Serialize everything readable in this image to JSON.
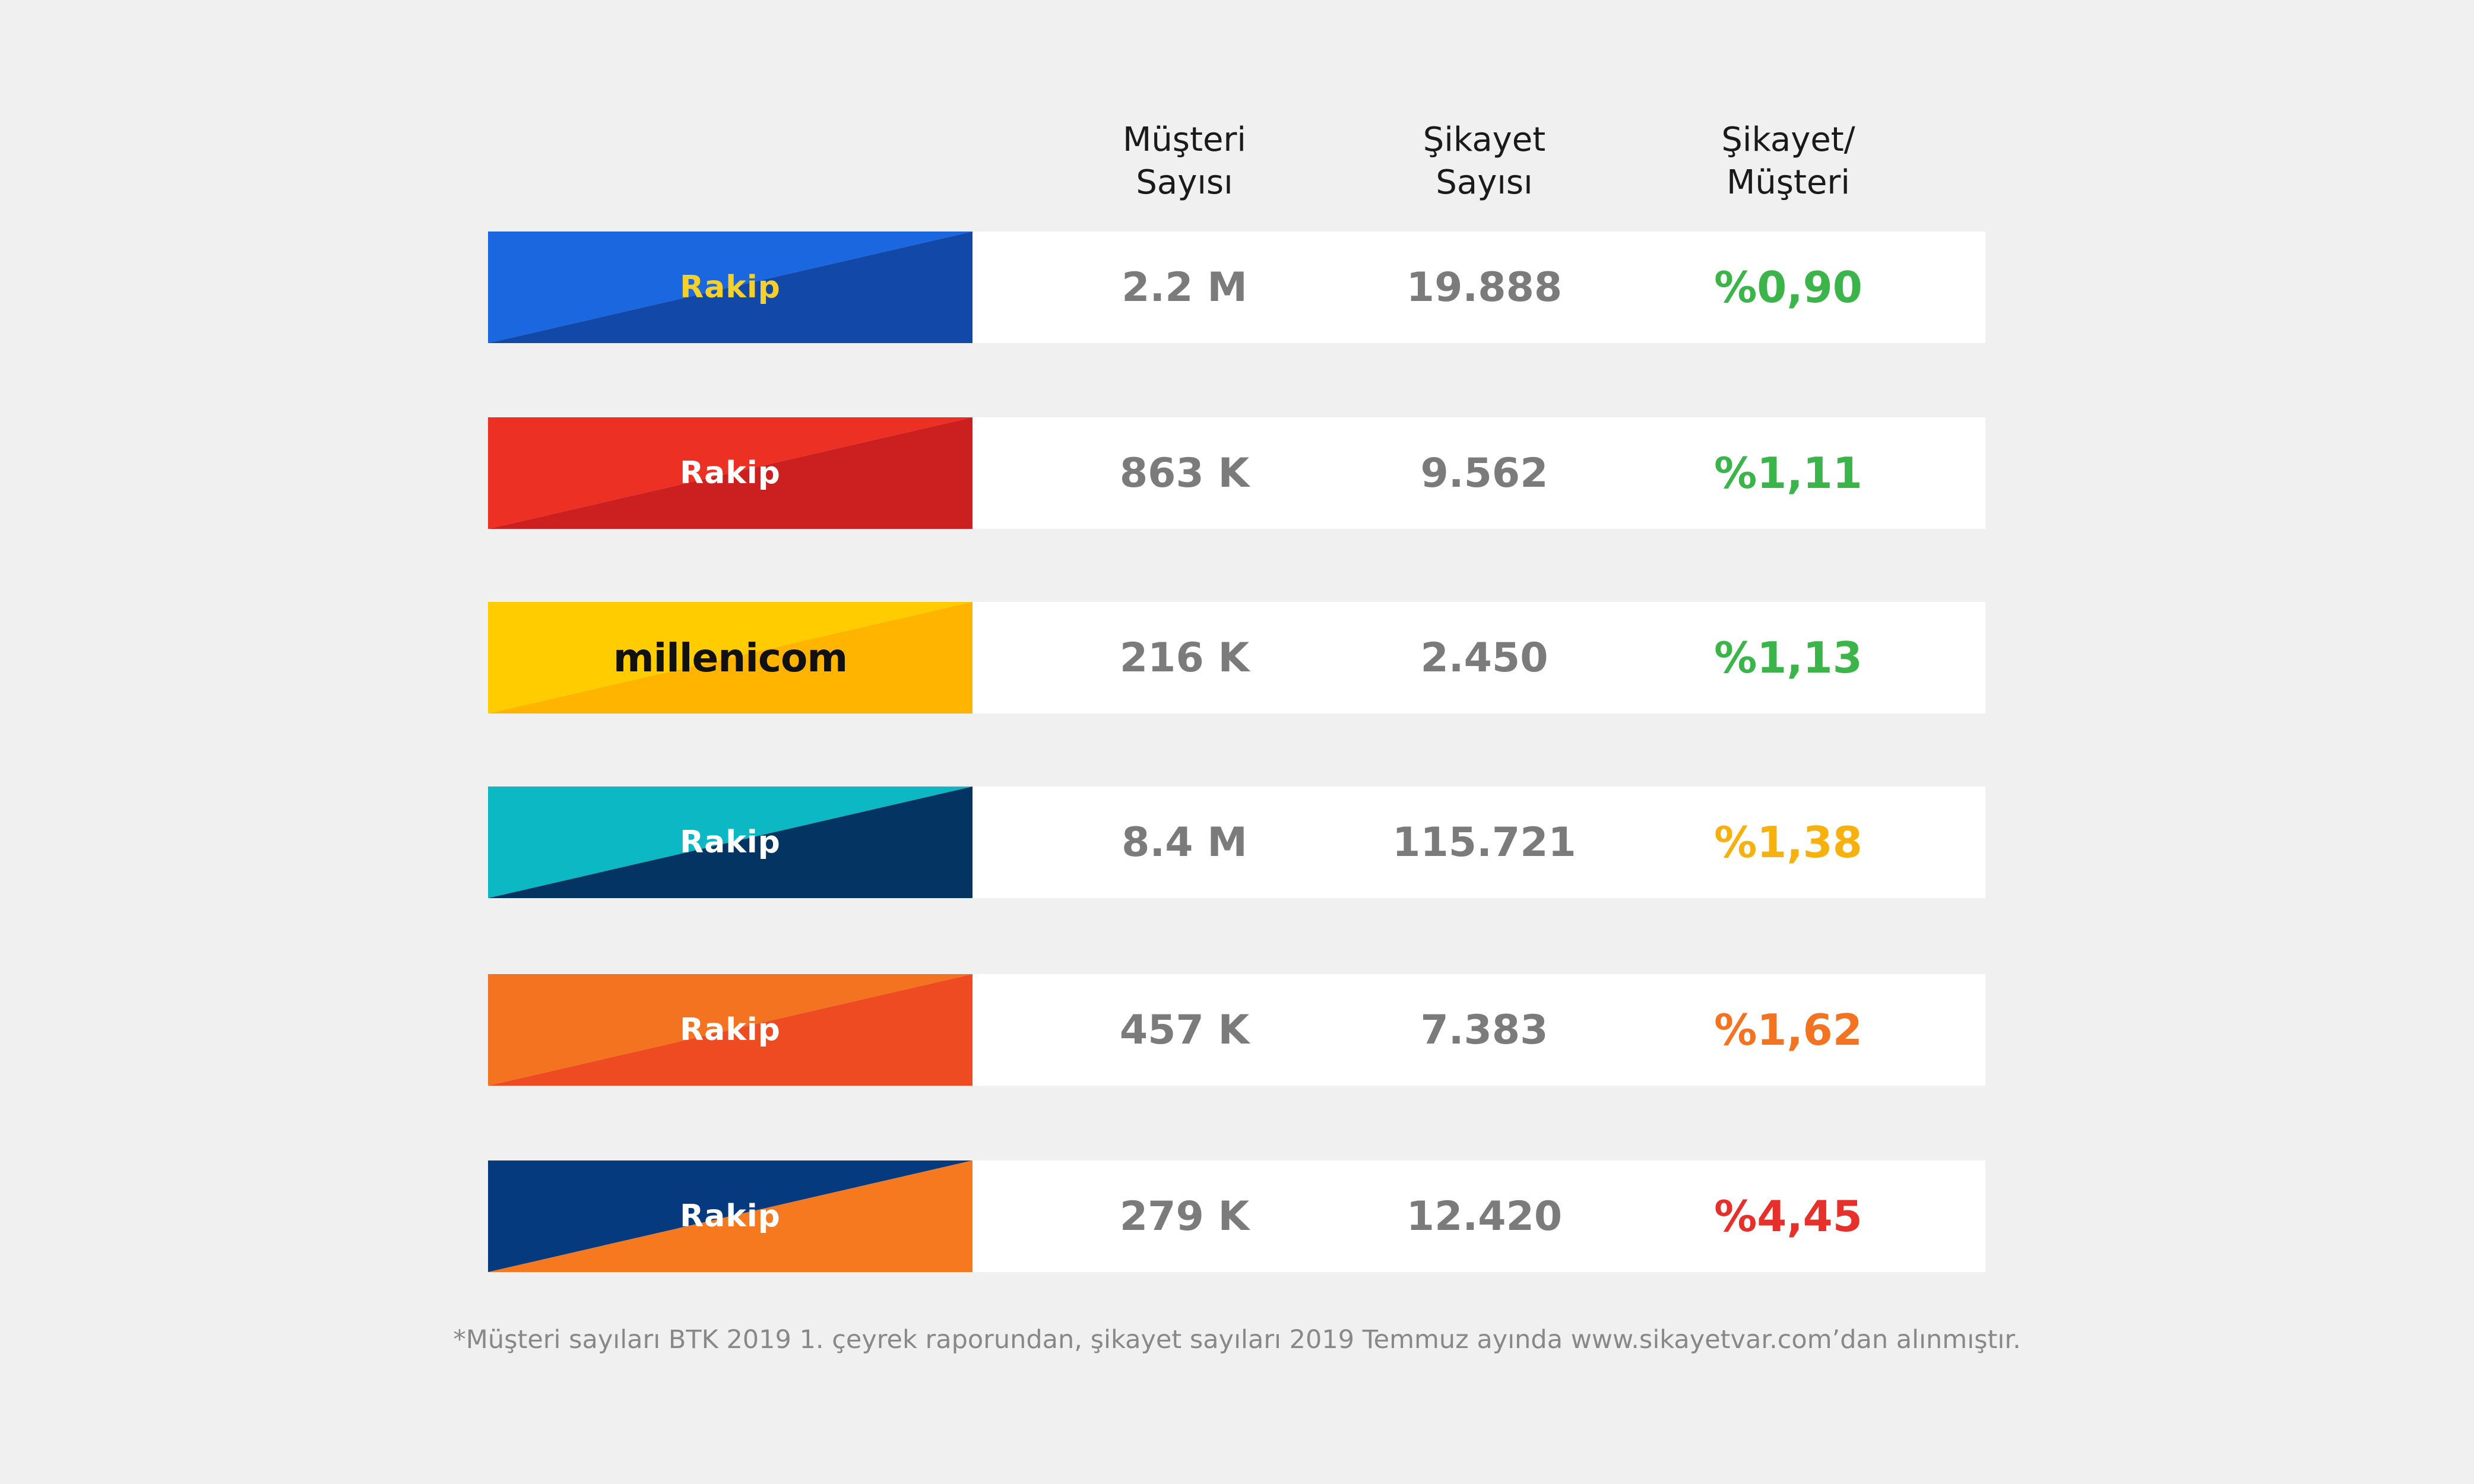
{
  "chart_data": {
    "type": "table",
    "columns": [
      "Müşteri Sayısı",
      "Şikayet Sayısı",
      "Şikayet/ Müşteri"
    ],
    "rows": [
      {
        "label": "Rakip",
        "label_color": "#f3d12a",
        "colors": [
          "#1b67df",
          "#1249a8"
        ],
        "customers": "2.2 M",
        "complaints": "19.888",
        "ratio": "%0,90",
        "ratio_color": "#3bb54a"
      },
      {
        "label": "Rakip",
        "label_color": "#ffffff",
        "colors": [
          "#ed3024",
          "#cc1f1f"
        ],
        "customers": "863 K",
        "complaints": "9.562",
        "ratio": "%1,11",
        "ratio_color": "#3bb54a"
      },
      {
        "label": "millenicom",
        "label_color": "#111111",
        "colors": [
          "#ffcc00",
          "#ffb400"
        ],
        "customers": "216 K",
        "complaints": "2.450",
        "ratio": "%1,13",
        "ratio_color": "#3bb54a"
      },
      {
        "label": "Rakip",
        "label_color": "#ffffff",
        "colors": [
          "#0bb8c4",
          "#033462"
        ],
        "customers": "8.4 M",
        "complaints": "115.721",
        "ratio": "%1,38",
        "ratio_color": "#f7b10e"
      },
      {
        "label": "Rakip",
        "label_color": "#ffffff",
        "colors": [
          "#f47321",
          "#ee4b23"
        ],
        "customers": "457 K",
        "complaints": "7.383",
        "ratio": "%1,62",
        "ratio_color": "#f47321"
      },
      {
        "label": "Rakip",
        "label_color": "#ffffff",
        "colors": [
          "#053a7f",
          "#f7791f"
        ],
        "customers": "279 K",
        "complaints": "12.420",
        "ratio": "%4,45",
        "ratio_color": "#e8302a"
      }
    ]
  },
  "header": {
    "customers": [
      "Müşteri",
      "Sayısı"
    ],
    "complaints": [
      "Şikayet",
      "Sayısı"
    ],
    "ratio": [
      "Şikayet/",
      "Müşteri"
    ]
  },
  "footnote": "*Müşteri sayıları BTK 2019 1. çeyrek raporundan, şikayet sayıları 2019 Temmuz ayında www.sikayetvar.com’dan alınmıştır."
}
